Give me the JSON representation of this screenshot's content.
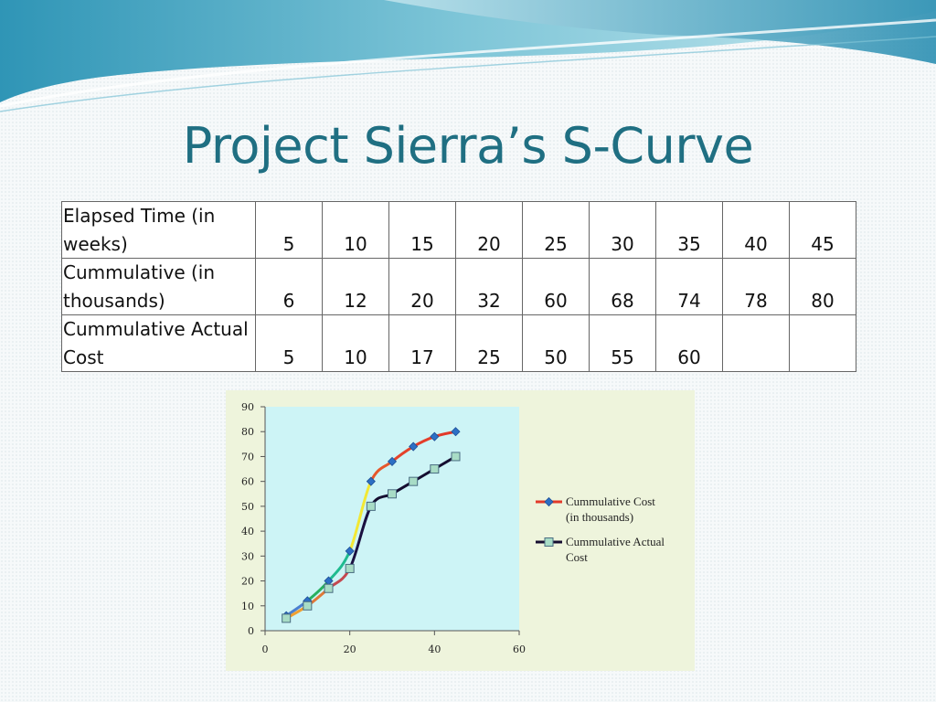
{
  "slide": {
    "title": "Project Sierra’s S-Curve"
  },
  "table": {
    "rows": [
      {
        "label": "Elapsed Time (in\nweeks)",
        "values": [
          "5",
          "10",
          "15",
          "20",
          "25",
          "30",
          "35",
          "40",
          "45"
        ]
      },
      {
        "label": "Cummulative (in\nthousands)",
        "values": [
          "6",
          "12",
          "20",
          "32",
          "60",
          "68",
          "74",
          "78",
          "80"
        ]
      },
      {
        "label": "Cummulative Actual\nCost",
        "values": [
          "5",
          "10",
          "17",
          "25",
          "50",
          "55",
          "60",
          "",
          ""
        ]
      }
    ]
  },
  "chart_data": {
    "type": "line",
    "xlim": [
      0,
      60
    ],
    "ylim": [
      0,
      90
    ],
    "x_ticks": [
      "0",
      "20",
      "40",
      "60"
    ],
    "y_ticks": [
      "0",
      "10",
      "20",
      "30",
      "40",
      "50",
      "60",
      "70",
      "80",
      "90"
    ],
    "legend_position": "right",
    "plot_background": "#cdf4f6",
    "chart_background": "#eef4dc",
    "series": [
      {
        "name": "Cummulative Cost (in thousands)",
        "legend_lines": [
          "Cummulative Cost",
          "(in thousands)"
        ],
        "marker": "diamond",
        "marker_color": "#2d6fc4",
        "line_colors": [
          "#4a7fd0",
          "#27b060",
          "#1fbb8f",
          "#f2e835",
          "#e6572c",
          "#e4422a",
          "#e33d2a",
          "#e23a2a"
        ],
        "x": [
          5,
          10,
          15,
          20,
          25,
          30,
          35,
          40,
          45
        ],
        "y": [
          6,
          12,
          20,
          32,
          60,
          68,
          74,
          78,
          80
        ]
      },
      {
        "name": "Cummulative Actual Cost",
        "legend_lines": [
          "Cummulative Actual",
          "Cost"
        ],
        "marker": "square",
        "marker_color": "#a8dcc6",
        "marker_stroke": "#4a6d82",
        "line_colors": [
          "#f0a030",
          "#e07838",
          "#c44850",
          "#1a1040",
          "#150d30",
          "#150d30",
          "#150d30",
          "#150d30"
        ],
        "x": [
          5,
          10,
          15,
          20,
          25,
          30,
          35,
          40,
          45
        ],
        "y": [
          5,
          10,
          17,
          25,
          50,
          55,
          60,
          65,
          70
        ]
      }
    ]
  }
}
